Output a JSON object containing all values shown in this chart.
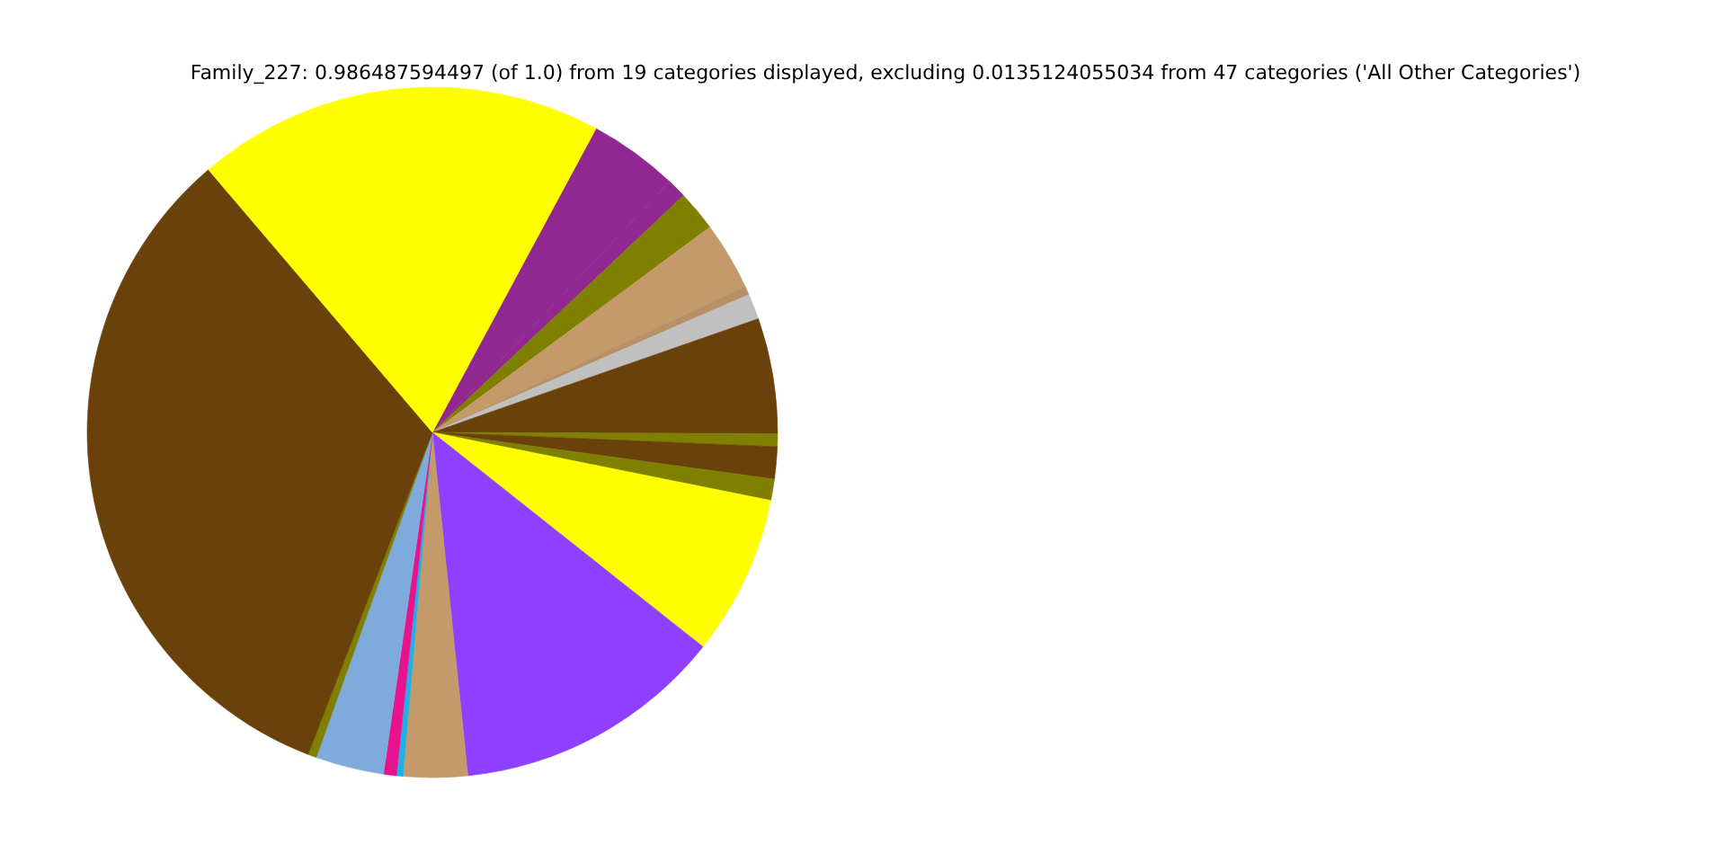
{
  "chart_data": {
    "type": "pie",
    "title": "Family_227: 0.986487594497 (of 1.0) from 19 categories displayed, excluding 0.0135124055034 from 47 categories ('All Other Categories')",
    "categories": [
      null,
      null,
      null,
      null,
      null,
      null,
      null,
      null,
      null,
      null,
      null,
      null,
      null,
      null,
      null,
      null,
      null,
      null,
      null
    ],
    "values": [
      4.2,
      0.9,
      1.9,
      3.2,
      0.4,
      1.2,
      5.4,
      0.6,
      1.5,
      1.0,
      7.5,
      12.7,
      3.0,
      0.3,
      0.6,
      3.2,
      0.4,
      32.9,
      19.1
    ],
    "colors": [
      "#912891",
      "#912891",
      "#808000",
      "#c49a6a",
      "#b89068",
      "#c0c0c0",
      "#6a410a",
      "#808000",
      "#6a410a",
      "#808000",
      "#ffff00",
      "#8f40ff",
      "#c49a6a",
      "#1fb0e8",
      "#e8128c",
      "#7faadc",
      "#808000",
      "#6a410a",
      "#ffff00"
    ]
  }
}
